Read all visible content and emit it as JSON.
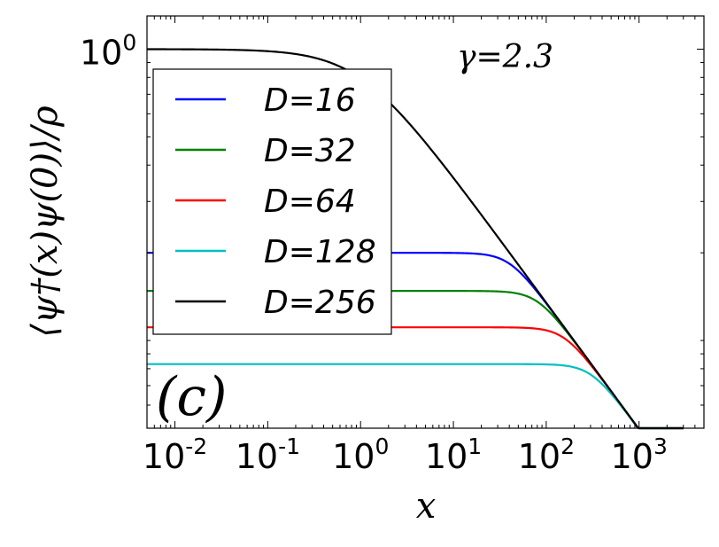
{
  "chart_data": {
    "type": "line",
    "panel_label": "(c)",
    "annotation": "γ=2.3",
    "xlabel": "x",
    "ylabel": "⟨ψ†(x)ψ(0)⟩/ρ",
    "xscale": "log",
    "yscale": "log",
    "xlim": [
      0.005,
      5000
    ],
    "ylim": [
      0.05,
      1.3
    ],
    "x_tick_labels": [
      "10",
      "10",
      "10",
      "10",
      "10",
      "10"
    ],
    "x_tick_exponents": [
      "-2",
      "-1",
      "0",
      "1",
      "2",
      "3"
    ],
    "y_tick_labels": [
      "10"
    ],
    "y_tick_exponents": [
      "0"
    ],
    "legend_position": "upper-left",
    "colors": {
      "axes": "#000000",
      "background": "#ffffff"
    },
    "series": [
      {
        "name": "D=16",
        "color": "#0000ff",
        "plateau": 0.2,
        "x_end": 3000
      },
      {
        "name": "D=32",
        "color": "#008000",
        "plateau": 0.148,
        "x_end": 3000
      },
      {
        "name": "D=64",
        "color": "#ff0000",
        "plateau": 0.111,
        "x_end": 3000
      },
      {
        "name": "D=128",
        "color": "#00bfbf",
        "plateau": 0.083,
        "x_end": 3000
      },
      {
        "name": "D=256",
        "color": "#000000",
        "plateau": null,
        "x_end": 3000
      }
    ],
    "base_curve": {
      "low_x_value": 1.0,
      "large_x_law": "x^(-0.435)",
      "crossover_x": 1.0
    }
  }
}
